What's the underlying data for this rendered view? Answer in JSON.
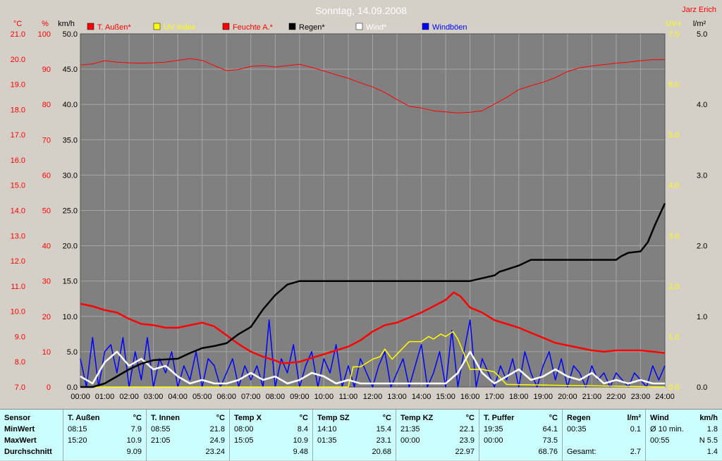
{
  "chart_data": {
    "type": "line",
    "title": "Sonntag, 14.09.2008",
    "author": "Jarz Erich",
    "x_ticks": [
      "00:00",
      "01:00",
      "02:00",
      "03:00",
      "04:00",
      "05:00",
      "06:00",
      "07:00",
      "08:00",
      "09:00",
      "10:00",
      "11:00",
      "12:00",
      "13:00",
      "14:00",
      "15:00",
      "16:00",
      "17:00",
      "18:00",
      "19:00",
      "20:00",
      "21:00",
      "22:00",
      "23:00",
      "24:00"
    ],
    "axes": {
      "temp_c": {
        "unit": "°C",
        "min": 7.0,
        "max": 21.0,
        "ticks": [
          "7.0",
          "8.0",
          "9.0",
          "10.0",
          "11.0",
          "12.0",
          "13.0",
          "14.0",
          "15.0",
          "16.0",
          "17.0",
          "18.0",
          "19.0",
          "20.0",
          "21.0"
        ],
        "color": "#ff0000"
      },
      "humidity_pct": {
        "unit": "%",
        "min": 0,
        "max": 100,
        "ticks": [
          "0",
          "10",
          "20",
          "30",
          "40",
          "50",
          "60",
          "70",
          "80",
          "90",
          "100"
        ],
        "color": "#ff0000"
      },
      "wind_kmh": {
        "unit": "km/h",
        "min": 0.0,
        "max": 50.0,
        "ticks": [
          "0.0",
          "5.0",
          "10.0",
          "15.0",
          "20.0",
          "25.0",
          "30.0",
          "35.0",
          "40.0",
          "45.0",
          "50.0"
        ],
        "color": "#000000"
      },
      "uv": {
        "unit": "UV-I",
        "min": 0.0,
        "max": 7.0,
        "ticks": [
          "0.0",
          "1.0",
          "2.0",
          "3.0",
          "4.0",
          "5.0",
          "6.0",
          "7.0"
        ],
        "color": "#ffff00"
      },
      "rain": {
        "unit": "l/m²",
        "min": 0.0,
        "max": 5.0,
        "ticks": [
          "0.0",
          "1.0",
          "2.0",
          "3.0",
          "4.0",
          "5.0"
        ],
        "color": "#000000"
      }
    },
    "legend": [
      {
        "label": "T. Außen*",
        "color": "#ff0000"
      },
      {
        "label": "UV Index",
        "color": "#ffff00"
      },
      {
        "label": "Feuchte A.*",
        "color": "#ff0000"
      },
      {
        "label": "Regen*",
        "color": "#000000"
      },
      {
        "label": "Wind*",
        "color": "#ffffff"
      },
      {
        "label": "Windböen",
        "color": "#0000ff"
      }
    ],
    "series": [
      {
        "name": "T. Außen*",
        "axis": "temp_c",
        "color": "#ff0000",
        "x": [
          0,
          0.5,
          1,
          1.5,
          2,
          2.5,
          3,
          3.5,
          4,
          4.5,
          5,
          5.5,
          6,
          6.5,
          7,
          7.5,
          8,
          8.25,
          8.5,
          9,
          9.5,
          10,
          10.5,
          11,
          11.5,
          12,
          12.5,
          13,
          13.5,
          14,
          14.5,
          15,
          15.33,
          15.6,
          16,
          16.5,
          17,
          17.5,
          18,
          18.5,
          19,
          19.5,
          20,
          20.5,
          21,
          21.5,
          22,
          22.5,
          23,
          23.5,
          24
        ],
        "y": [
          10.3,
          10.2,
          10.05,
          9.95,
          9.7,
          9.5,
          9.45,
          9.35,
          9.35,
          9.45,
          9.55,
          9.4,
          9.05,
          8.7,
          8.4,
          8.2,
          8.05,
          7.95,
          7.95,
          8.0,
          8.15,
          8.3,
          8.45,
          8.6,
          8.85,
          9.2,
          9.45,
          9.55,
          9.75,
          9.95,
          10.2,
          10.45,
          10.75,
          10.6,
          10.15,
          9.95,
          9.65,
          9.5,
          9.35,
          9.15,
          8.95,
          8.75,
          8.65,
          8.55,
          8.45,
          8.4,
          8.45,
          8.45,
          8.45,
          8.4,
          8.35
        ]
      },
      {
        "name": "Feuchte A.*",
        "axis": "humidity_pct",
        "color": "#ff0000",
        "x": [
          0,
          0.5,
          1,
          1.5,
          2,
          2.5,
          3,
          3.5,
          4,
          4.5,
          5,
          5.5,
          6,
          6.5,
          7,
          7.5,
          8,
          8.5,
          9,
          9.5,
          10,
          10.5,
          11,
          11.5,
          12,
          12.5,
          13,
          13.5,
          14,
          14.5,
          15,
          15.5,
          16,
          16.5,
          17,
          17.5,
          18,
          18.5,
          19,
          19.5,
          20,
          20.5,
          21,
          21.5,
          22,
          22.5,
          23,
          23.5,
          24
        ],
        "y": [
          91.2,
          91.5,
          92.4,
          92.0,
          91.8,
          91.7,
          91.8,
          92.0,
          92.5,
          93.0,
          92.5,
          91.0,
          89.6,
          89.9,
          90.8,
          91.0,
          90.6,
          91.0,
          91.4,
          90.5,
          89.5,
          88.4,
          87.4,
          86.1,
          85.0,
          83.4,
          81.4,
          79.5,
          79.0,
          78.2,
          77.9,
          77.6,
          77.8,
          78.2,
          80.1,
          82.0,
          84.2,
          85.3,
          86.3,
          87.6,
          89.3,
          90.4,
          90.9,
          91.3,
          91.7,
          92.0,
          92.4,
          92.7,
          92.7
        ]
      },
      {
        "name": "Regen*",
        "axis": "rain",
        "color": "#000000",
        "x": [
          0,
          0.5,
          1,
          1.5,
          2,
          2.5,
          3,
          4,
          4.5,
          5,
          5.5,
          6,
          6.5,
          7,
          7.5,
          8,
          8.5,
          9,
          10,
          11,
          12,
          13,
          14,
          15,
          16,
          17,
          17.2,
          18,
          18.5,
          19,
          20,
          21,
          22,
          22.2,
          22.5,
          23,
          23.3,
          23.6,
          24
        ],
        "y": [
          0,
          0,
          0.05,
          0.15,
          0.25,
          0.33,
          0.38,
          0.4,
          0.48,
          0.55,
          0.58,
          0.62,
          0.75,
          0.85,
          1.1,
          1.3,
          1.45,
          1.5,
          1.5,
          1.5,
          1.5,
          1.5,
          1.5,
          1.5,
          1.5,
          1.58,
          1.63,
          1.72,
          1.8,
          1.8,
          1.8,
          1.8,
          1.8,
          1.85,
          1.9,
          1.92,
          2.05,
          2.3,
          2.6
        ]
      },
      {
        "name": "UV Index",
        "axis": "uv",
        "color": "#ffff00",
        "x": [
          0,
          11,
          11.2,
          11.5,
          12,
          12.3,
          12.5,
          12.8,
          13,
          13.3,
          13.5,
          14,
          14.3,
          14.5,
          14.8,
          15,
          15.3,
          15.5,
          15.8,
          16,
          16.5,
          17,
          17.5,
          24
        ],
        "y": [
          0,
          0,
          0.4,
          0.4,
          0.55,
          0.6,
          0.75,
          0.55,
          0.65,
          0.8,
          0.9,
          0.9,
          1.0,
          0.95,
          1.05,
          1.0,
          1.1,
          0.95,
          0.6,
          0.35,
          0.35,
          0.3,
          0.05,
          0
        ]
      },
      {
        "name": "Wind*",
        "axis": "wind_kmh",
        "color": "#ffffff",
        "x": [
          0,
          0.5,
          1,
          1.5,
          2,
          2.5,
          3,
          3.5,
          4,
          4.5,
          5,
          5.5,
          6,
          6.5,
          7,
          7.5,
          8,
          8.5,
          9,
          9.5,
          10,
          10.5,
          11,
          11.5,
          12,
          12.5,
          13,
          13.5,
          14,
          14.5,
          15,
          15.5,
          16,
          16.5,
          17,
          17.5,
          18,
          18.5,
          19,
          19.5,
          20,
          20.5,
          21,
          21.5,
          22,
          22.5,
          23,
          23.5,
          24
        ],
        "y": [
          1.5,
          0.5,
          3.5,
          5.0,
          3.0,
          4.0,
          2.5,
          3.0,
          1.5,
          0.5,
          1.0,
          0.5,
          0.5,
          1.0,
          2.0,
          1.0,
          1.5,
          0.5,
          1.0,
          2.0,
          1.5,
          0.5,
          1.0,
          0.5,
          0.5,
          0.5,
          0.5,
          0.5,
          0.5,
          0.5,
          0.5,
          2.0,
          5.0,
          2.0,
          0.5,
          1.5,
          2.5,
          1.0,
          1.5,
          2.5,
          1.5,
          1.0,
          2.0,
          0.5,
          1.0,
          0.5,
          1.0,
          0.5,
          0.5
        ]
      },
      {
        "name": "Windböen",
        "axis": "wind_kmh",
        "color": "#0000ff",
        "x": [
          0,
          0.25,
          0.5,
          0.75,
          1,
          1.25,
          1.5,
          1.75,
          2,
          2.25,
          2.5,
          2.75,
          3,
          3.25,
          3.5,
          3.75,
          4,
          4.25,
          4.5,
          4.75,
          5,
          5.25,
          5.5,
          5.75,
          6,
          6.25,
          6.5,
          6.75,
          7,
          7.25,
          7.5,
          7.75,
          8,
          8.25,
          8.5,
          8.75,
          9,
          9.25,
          9.5,
          9.75,
          10,
          10.25,
          10.5,
          10.75,
          11,
          11.25,
          11.5,
          11.75,
          12,
          12.25,
          12.5,
          12.75,
          13,
          13.25,
          13.5,
          13.75,
          14,
          14.25,
          14.5,
          14.75,
          15,
          15.25,
          15.5,
          15.75,
          16,
          16.25,
          16.5,
          16.75,
          17,
          17.25,
          17.5,
          17.75,
          18,
          18.25,
          18.5,
          18.75,
          19,
          19.25,
          19.5,
          19.75,
          20,
          20.25,
          20.5,
          20.75,
          21,
          21.25,
          21.5,
          21.75,
          22,
          22.25,
          22.5,
          22.75,
          23,
          23.25,
          23.5,
          23.75,
          24
        ],
        "y": [
          4,
          0,
          7,
          0,
          5,
          6,
          2,
          7,
          0,
          5,
          1,
          7,
          0,
          4,
          2,
          5,
          0,
          3,
          1,
          5,
          0,
          4,
          3,
          0,
          2,
          4,
          0,
          3,
          1,
          3,
          0,
          9.5,
          0,
          4,
          2,
          6,
          0,
          3,
          5,
          0,
          4,
          2,
          6,
          0,
          3,
          0,
          4,
          2,
          0,
          3,
          5,
          0,
          2,
          4,
          0,
          3,
          6,
          0,
          2,
          5,
          0,
          8,
          0,
          5,
          9.5,
          0,
          4,
          2,
          0,
          3,
          1,
          4,
          0,
          5,
          2,
          0,
          3,
          5,
          1,
          4,
          0,
          3,
          2,
          0,
          3,
          1,
          2,
          0,
          2,
          1,
          0,
          2,
          1,
          0,
          3,
          1,
          3
        ]
      }
    ]
  },
  "stats": {
    "row_labels": [
      "Sensor",
      "MinWert",
      "MaxWert",
      "Durchschnitt"
    ],
    "columns": [
      {
        "name": "T. Außen",
        "unit": "°C",
        "min_time": "08:15",
        "min_val": "7.9",
        "max_time": "15:20",
        "max_val": "10.9",
        "avg": "9.09"
      },
      {
        "name": "T. Innen",
        "unit": "°C",
        "min_time": "08:55",
        "min_val": "21.8",
        "max_time": "21:05",
        "max_val": "24.9",
        "avg": "23.24"
      },
      {
        "name": "Temp X",
        "unit": "°C",
        "min_time": "08:00",
        "min_val": "8.4",
        "max_time": "15:05",
        "max_val": "10.9",
        "avg": "9.48"
      },
      {
        "name": "Temp SZ",
        "unit": "°C",
        "min_time": "14:10",
        "min_val": "15.4",
        "max_time": "01:35",
        "max_val": "23.1",
        "avg": "20.68"
      },
      {
        "name": "Temp KZ",
        "unit": "°C",
        "min_time": "21:35",
        "min_val": "22.1",
        "max_time": "00:00",
        "max_val": "23.9",
        "avg": "22.97"
      },
      {
        "name": "T. Puffer",
        "unit": "°C",
        "min_time": "19:35",
        "min_val": "64.1",
        "max_time": "00:00",
        "max_val": "73.5",
        "avg": "68.76"
      },
      {
        "name": "Regen",
        "unit": "l/m²",
        "min_time": "00:35",
        "min_val": "0.1",
        "max_time": "",
        "max_val": "",
        "avg_label": "Gesamt:",
        "avg": "2.7"
      },
      {
        "name": "Wind",
        "unit": "km/h",
        "min_time": "Ø 10 min.",
        "min_val": "1.8",
        "max_time": "00:55",
        "max_val": "N 5.5",
        "avg": "1.4"
      }
    ]
  }
}
